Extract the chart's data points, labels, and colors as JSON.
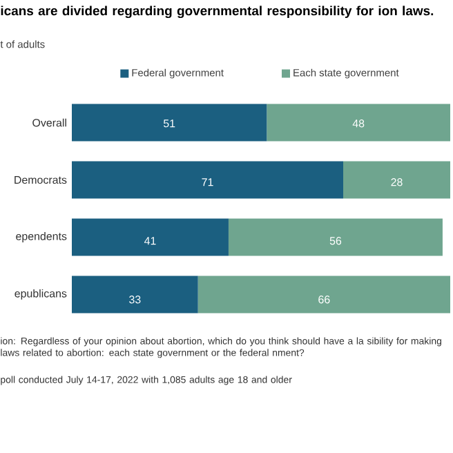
{
  "chart_data": {
    "type": "bar",
    "orientation": "horizontal",
    "stacked": true,
    "data_labels": true,
    "legend": "top",
    "title": "icans are divided regarding governmental responsibility for ion laws.",
    "subtitle": "t of adults",
    "categories": [
      "Overall",
      "Democrats",
      "ependents",
      "epublicans"
    ],
    "series": [
      {
        "name": "Federal government",
        "color": "#1b5f80",
        "values": [
          51,
          71,
          41,
          33
        ]
      },
      {
        "name": "Each state government",
        "color": "#6fa58f",
        "values": [
          48,
          28,
          56,
          66
        ]
      }
    ],
    "annotations": [
      "ion: Regardless of your opinion about abortion, which do you think should have a la sibility for making laws related to abortion: each state government or the federal nment?",
      "poll conducted July 14-17, 2022 with 1,085 adults age 18 and older"
    ]
  }
}
